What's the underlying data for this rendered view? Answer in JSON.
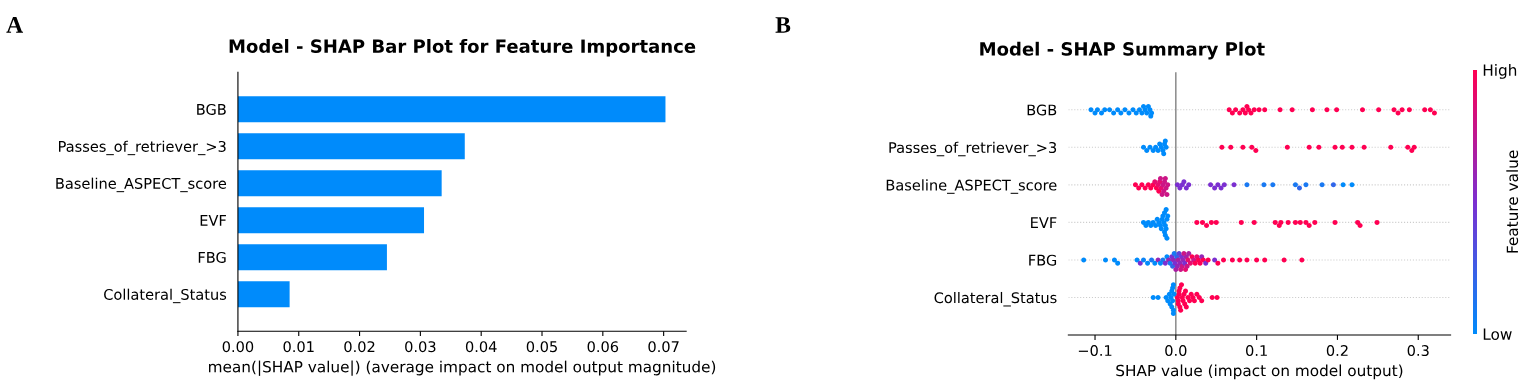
{
  "chart_data": [
    {
      "type": "bar",
      "orientation": "horizontal",
      "title": "Model - SHAP Bar Plot for Feature Importance",
      "xlabel": "mean(|SHAP value|) (average impact on model output magnitude)",
      "annotations": [
        "A"
      ],
      "categories": [
        "BGB",
        "Passes_of_retriever_>3",
        "Baseline_ASPECT_score",
        "EVF",
        "FBG",
        "Collateral_Status"
      ],
      "values": [
        0.0703,
        0.0373,
        0.0335,
        0.0306,
        0.0245,
        0.0085
      ],
      "color": "#008bfb",
      "xlim": [
        0,
        0.0737
      ],
      "xticks": [
        {
          "value": 0,
          "label": "0.00"
        },
        {
          "value": 0.01,
          "label": "0.01"
        },
        {
          "value": 0.02,
          "label": "0.02"
        },
        {
          "value": 0.03,
          "label": "0.03"
        },
        {
          "value": 0.04,
          "label": "0.04"
        },
        {
          "value": 0.05,
          "label": "0.05"
        },
        {
          "value": 0.06,
          "label": "0.06"
        },
        {
          "value": 0.07,
          "label": "0.07"
        }
      ],
      "grid": false
    },
    {
      "type": "scatter",
      "orientation": "horizontal",
      "title": "Model - SHAP Summary Plot",
      "xlabel": "SHAP value (impact on model output)",
      "annotations": [
        "B"
      ],
      "clabel": "Feature value",
      "categories": [
        "BGB",
        "Passes_of_retriever_>3",
        "Baseline_ASPECT_score",
        "EVF",
        "FBG",
        "Collateral_Status"
      ],
      "xlim": [
        -0.133,
        0.34
      ],
      "xticks": [
        {
          "value": -0.1,
          "label": "−0.1"
        },
        {
          "value": 0,
          "label": "0.0"
        },
        0.1,
        0.2,
        0.3
      ],
      "clim": [
        0,
        1
      ],
      "cticks": [
        {
          "value": 0,
          "label": "Low"
        },
        {
          "value": 1,
          "label": "High"
        }
      ],
      "grid": "y",
      "marker": "circle",
      "ref_lines": [
        {
          "axis": "x",
          "value": 0,
          "color": "#808080"
        }
      ],
      "series": [
        {
          "x": [
            "BGB",
            "BGB",
            "BGB",
            "BGB",
            "BGB",
            "BGB",
            "BGB",
            "BGB",
            "BGB",
            "BGB",
            "BGB",
            "BGB",
            "BGB",
            "BGB",
            "BGB",
            "BGB",
            "BGB",
            "BGB",
            "BGB",
            "BGB",
            "BGB",
            "BGB"
          ],
          "values": [
            -0.105,
            -0.1,
            -0.097,
            -0.092,
            -0.088,
            -0.082,
            -0.077,
            -0.072,
            -0.068,
            -0.063,
            -0.058,
            -0.053,
            -0.049,
            -0.045,
            -0.042,
            -0.04,
            -0.038,
            -0.036,
            -0.034,
            -0.032,
            -0.031,
            -0.03
          ],
          "color": "#008bfb"
        },
        {
          "x": [
            "BGB",
            "BGB",
            "BGB",
            "BGB",
            "BGB",
            "BGB",
            "BGB",
            "BGB",
            "BGB",
            "BGB",
            "BGB",
            "BGB",
            "BGB",
            "BGB",
            "BGB",
            "BGB",
            "BGB",
            "BGB",
            "BGB",
            "BGB",
            "BGB",
            "BGB",
            "BGB",
            "BGB",
            "BGB",
            "BGB"
          ],
          "values": [
            0.066,
            0.07,
            0.074,
            0.079,
            0.083,
            0.086,
            0.088,
            0.09,
            0.093,
            0.097,
            0.103,
            0.11,
            0.129,
            0.144,
            0.169,
            0.187,
            0.199,
            0.231,
            0.251,
            0.27,
            0.275,
            0.28,
            0.289,
            0.308,
            0.315,
            0.32
          ],
          "color": "#ff0052"
        },
        {
          "x": [
            "Passes_of_retriever_>3",
            "Passes_of_retriever_>3",
            "Passes_of_retriever_>3",
            "Passes_of_retriever_>3",
            "Passes_of_retriever_>3",
            "Passes_of_retriever_>3",
            "Passes_of_retriever_>3",
            "Passes_of_retriever_>3",
            "Passes_of_retriever_>3",
            "Passes_of_retriever_>3",
            "Passes_of_retriever_>3",
            "Passes_of_retriever_>3",
            "Passes_of_retriever_>3"
          ],
          "values": [
            -0.04,
            -0.036,
            -0.032,
            -0.028,
            -0.025,
            -0.022,
            -0.02,
            -0.018,
            -0.016,
            -0.015,
            -0.014,
            -0.013,
            -0.012
          ],
          "color": "#008bfb"
        },
        {
          "x": [
            "Passes_of_retriever_>3",
            "Passes_of_retriever_>3",
            "Passes_of_retriever_>3",
            "Passes_of_retriever_>3",
            "Passes_of_retriever_>3",
            "Passes_of_retriever_>3",
            "Passes_of_retriever_>3",
            "Passes_of_retriever_>3",
            "Passes_of_retriever_>3",
            "Passes_of_retriever_>3",
            "Passes_of_retriever_>3",
            "Passes_of_retriever_>3",
            "Passes_of_retriever_>3",
            "Passes_of_retriever_>3",
            "Passes_of_retriever_>3",
            "Passes_of_retriever_>3"
          ],
          "values": [
            0.057,
            0.068,
            0.083,
            0.094,
            0.099,
            0.138,
            0.165,
            0.177,
            0.197,
            0.206,
            0.218,
            0.233,
            0.266,
            0.287,
            0.292,
            0.295
          ],
          "color": "#ff0052"
        },
        {
          "x": [
            "Baseline_ASPECT_score",
            "Baseline_ASPECT_score",
            "Baseline_ASPECT_score",
            "Baseline_ASPECT_score",
            "Baseline_ASPECT_score",
            "Baseline_ASPECT_score",
            "Baseline_ASPECT_score",
            "Baseline_ASPECT_score",
            "Baseline_ASPECT_score",
            "Baseline_ASPECT_score",
            "Baseline_ASPECT_score",
            "Baseline_ASPECT_score",
            "Baseline_ASPECT_score",
            "Baseline_ASPECT_score",
            "Baseline_ASPECT_score",
            "Baseline_ASPECT_score",
            "Baseline_ASPECT_score",
            "Baseline_ASPECT_score",
            "Baseline_ASPECT_score",
            "Baseline_ASPECT_score",
            "Baseline_ASPECT_score",
            "Baseline_ASPECT_score",
            "Baseline_ASPECT_score",
            "Baseline_ASPECT_score",
            "Baseline_ASPECT_score",
            "Baseline_ASPECT_score",
            "Baseline_ASPECT_score",
            "Baseline_ASPECT_score",
            "Baseline_ASPECT_score",
            "Baseline_ASPECT_score",
            "Baseline_ASPECT_score",
            "Baseline_ASPECT_score",
            "Baseline_ASPECT_score",
            "Baseline_ASPECT_score",
            "Baseline_ASPECT_score",
            "Baseline_ASPECT_score",
            "Baseline_ASPECT_score",
            "Baseline_ASPECT_score",
            "Baseline_ASPECT_score",
            "Baseline_ASPECT_score",
            "Baseline_ASPECT_score",
            "Baseline_ASPECT_score",
            "Baseline_ASPECT_score",
            "Baseline_ASPECT_score"
          ],
          "values": [
            -0.05,
            -0.046,
            -0.042,
            -0.038,
            -0.034,
            -0.031,
            -0.028,
            -0.026,
            -0.024,
            -0.022,
            -0.021,
            -0.02,
            -0.019,
            -0.018,
            -0.017,
            -0.016,
            -0.015,
            -0.014,
            -0.013,
            -0.012,
            -0.011,
            -0.01,
            0.002,
            0.005,
            0.008,
            0.01,
            0.013,
            0.016,
            0.043,
            0.048,
            0.052,
            0.056,
            0.06,
            0.072,
            0.088,
            0.109,
            0.12,
            0.148,
            0.153,
            0.161,
            0.181,
            0.195,
            0.207,
            0.218
          ],
          "colors": [
            "#ff0052",
            "#ff0052",
            "#ff0052",
            "#ff0052",
            "#ff0052",
            "#ff0052",
            "#ff0052",
            "#e70c6f",
            "#ff0052",
            "#e70c6f",
            "#ff0052",
            "#e70c6f",
            "#cc1586",
            "#e70c6f",
            "#cc1586",
            "#cc1586",
            "#cc1586",
            "#cc1586",
            "#cc1586",
            "#cc1586",
            "#cc1586",
            "#cc1586",
            "#7b2fd0",
            "#7b2fd0",
            "#7b2fd0",
            "#7b2fd0",
            "#7b2fd0",
            "#7b2fd0",
            "#7b2fd0",
            "#7b2fd0",
            "#7b2fd0",
            "#7b2fd0",
            "#7b2fd0",
            "#7b2fd0",
            "#1979f2",
            "#1979f2",
            "#1979f2",
            "#1979f2",
            "#3166ea",
            "#1979f2",
            "#1979f2",
            "#3166ea",
            "#008bfb",
            "#008bfb"
          ]
        },
        {
          "x": [
            "EVF",
            "EVF",
            "EVF",
            "EVF",
            "EVF",
            "EVF",
            "EVF",
            "EVF",
            "EVF",
            "EVF",
            "EVF",
            "EVF",
            "EVF",
            "EVF",
            "EVF",
            "EVF",
            "EVF",
            "EVF",
            "EVF",
            "EVF",
            "EVF",
            "EVF"
          ],
          "values": [
            -0.04,
            -0.037,
            -0.034,
            -0.031,
            -0.028,
            -0.025,
            -0.023,
            -0.021,
            -0.019,
            -0.018,
            -0.017,
            -0.016,
            -0.015,
            -0.014,
            -0.014,
            -0.013,
            -0.013,
            -0.012,
            -0.012,
            -0.011,
            -0.011,
            -0.01
          ],
          "color": "#008bfb"
        },
        {
          "x": [
            "EVF",
            "EVF",
            "EVF",
            "EVF",
            "EVF",
            "EVF",
            "EVF",
            "EVF",
            "EVF",
            "EVF",
            "EVF",
            "EVF",
            "EVF",
            "EVF",
            "EVF",
            "EVF",
            "EVF",
            "EVF",
            "EVF",
            "EVF"
          ],
          "values": [
            0.026,
            0.038,
            0.05,
            0.081,
            0.097,
            0.123,
            0.13,
            0.139,
            0.148,
            0.154,
            0.161,
            0.172,
            0.197,
            0.225,
            0.228,
            0.249,
            0.033,
            0.044,
            0.128,
            0.165
          ],
          "color": "#ff0052"
        },
        {
          "x": [
            "FBG",
            "FBG",
            "FBG",
            "FBG",
            "FBG",
            "FBG",
            "FBG",
            "FBG",
            "FBG",
            "FBG",
            "FBG",
            "FBG",
            "FBG",
            "FBG",
            "FBG",
            "FBG",
            "FBG",
            "FBG",
            "FBG",
            "FBG",
            "FBG",
            "FBG",
            "FBG",
            "FBG",
            "FBG",
            "FBG",
            "FBG",
            "FBG",
            "FBG",
            "FBG",
            "FBG",
            "FBG",
            "FBG",
            "FBG",
            "FBG",
            "FBG",
            "FBG",
            "FBG",
            "FBG",
            "FBG",
            "FBG",
            "FBG",
            "FBG",
            "FBG",
            "FBG",
            "FBG",
            "FBG",
            "FBG",
            "FBG",
            "FBG",
            "FBG",
            "FBG",
            "FBG",
            "FBG",
            "FBG",
            "FBG",
            "FBG",
            "FBG",
            "FBG",
            "FBG"
          ],
          "values": [
            -0.114,
            -0.087,
            -0.076,
            -0.072,
            -0.048,
            -0.044,
            -0.04,
            -0.035,
            -0.03,
            -0.026,
            -0.022,
            -0.019,
            -0.016,
            -0.013,
            -0.011,
            -0.009,
            -0.007,
            -0.005,
            -0.004,
            -0.003,
            -0.002,
            -0.001,
            0,
            0.001,
            0.002,
            0.003,
            0.004,
            0.005,
            0.006,
            0.007,
            0.008,
            0.009,
            0.01,
            0.011,
            0.012,
            0.013,
            0.014,
            0.015,
            0.016,
            0.018,
            0.02,
            0.022,
            0.024,
            0.026,
            0.028,
            0.03,
            0.032,
            0.034,
            0.037,
            0.04,
            0.048,
            0.052,
            0.059,
            0.07,
            0.079,
            0.088,
            0.1,
            0.11,
            0.134,
            0.156
          ],
          "colors": [
            "#008bfb",
            "#008bfb",
            "#008bfb",
            "#008bfb",
            "#008bfb",
            "#7b2fd0",
            "#0c84f7",
            "#008bfb",
            "#1979f2",
            "#008bfb",
            "#9526b7",
            "#008bfb",
            "#1979f2",
            "#7b2fd0",
            "#008bfb",
            "#9526b7",
            "#1979f2",
            "#7b2fd0",
            "#3166ea",
            "#9526b7",
            "#1979f2",
            "#7b2fd0",
            "#a91fa4",
            "#3166ea",
            "#9526b7",
            "#a91fa4",
            "#6241d8",
            "#9526b7",
            "#cc1586",
            "#7b2fd0",
            "#cc1586",
            "#9526b7",
            "#cc1586",
            "#7b2fd0",
            "#e70c6f",
            "#a91fa4",
            "#cc1586",
            "#e70c6f",
            "#a91fa4",
            "#e70c6f",
            "#ff0052",
            "#cc1586",
            "#ff0052",
            "#e70c6f",
            "#ff0052",
            "#ff0052",
            "#9526b7",
            "#ff0052",
            "#7b2fd0",
            "#ff0052",
            "#7b2fd0",
            "#ff0052",
            "#ff0052",
            "#ff0052",
            "#ff0052",
            "#ff0052",
            "#ff0052",
            "#ff0052",
            "#ff0052",
            "#ff0052"
          ]
        },
        {
          "x": [
            "Collateral_Status",
            "Collateral_Status",
            "Collateral_Status",
            "Collateral_Status",
            "Collateral_Status",
            "Collateral_Status",
            "Collateral_Status",
            "Collateral_Status",
            "Collateral_Status",
            "Collateral_Status",
            "Collateral_Status",
            "Collateral_Status",
            "Collateral_Status",
            "Collateral_Status",
            "Collateral_Status"
          ],
          "values": [
            -0.028,
            -0.022,
            -0.012,
            -0.01,
            -0.008,
            -0.007,
            -0.006,
            -0.005,
            -0.005,
            -0.004,
            -0.004,
            -0.003,
            -0.003,
            -0.003,
            -0.002
          ],
          "color": "#008bfb"
        },
        {
          "x": [
            "Collateral_Status",
            "Collateral_Status",
            "Collateral_Status",
            "Collateral_Status",
            "Collateral_Status",
            "Collateral_Status",
            "Collateral_Status",
            "Collateral_Status",
            "Collateral_Status",
            "Collateral_Status",
            "Collateral_Status",
            "Collateral_Status",
            "Collateral_Status",
            "Collateral_Status",
            "Collateral_Status",
            "Collateral_Status",
            "Collateral_Status",
            "Collateral_Status",
            "Collateral_Status",
            "Collateral_Status",
            "Collateral_Status",
            "Collateral_Status",
            "Collateral_Status",
            "Collateral_Status",
            "Collateral_Status"
          ],
          "values": [
            0.002,
            0.003,
            0.003,
            0.004,
            0.004,
            0.005,
            0.005,
            0.006,
            0.007,
            0.008,
            0.009,
            0.01,
            0.011,
            0.012,
            0.013,
            0.015,
            0.017,
            0.019,
            0.021,
            0.023,
            0.026,
            0.029,
            0.032,
            0.045,
            0.051
          ],
          "color": "#ff0052"
        }
      ]
    }
  ]
}
